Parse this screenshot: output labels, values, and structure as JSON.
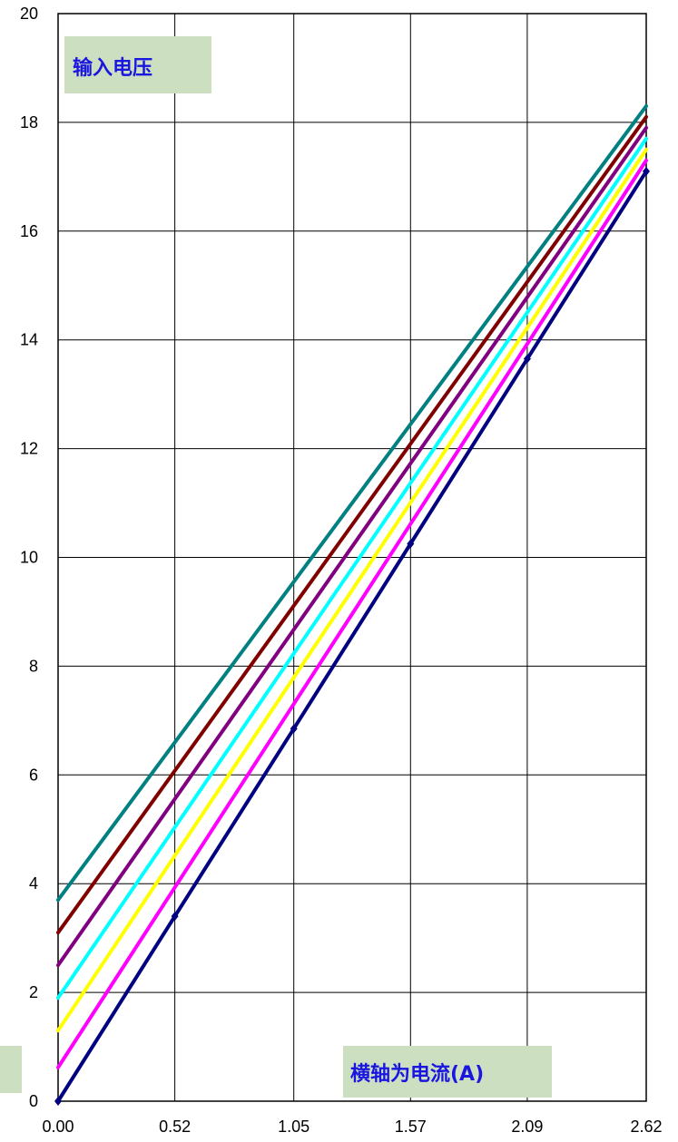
{
  "chart_data": {
    "type": "line",
    "ylabel": "输入电压",
    "xlabel": "横轴为电流(A)",
    "xlim": [
      0,
      2.62
    ],
    "ylim": [
      0,
      20
    ],
    "x_ticks": [
      "0.00",
      "0.52",
      "1.05",
      "1.57",
      "2.09",
      "2.62"
    ],
    "y_ticks": [
      "0",
      "2",
      "4",
      "6",
      "8",
      "10",
      "12",
      "14",
      "16",
      "18",
      "20"
    ],
    "grid": true,
    "label_box_color": "#ccdfc0",
    "series": [
      {
        "color": "#008080",
        "x": [
          0,
          2.62
        ],
        "y": [
          3.7,
          18.3
        ]
      },
      {
        "color": "#800000",
        "x": [
          0,
          2.62
        ],
        "y": [
          3.1,
          18.1
        ]
      },
      {
        "color": "#800080",
        "x": [
          0,
          2.62
        ],
        "y": [
          2.5,
          17.9
        ]
      },
      {
        "color": "#00ffff",
        "x": [
          0,
          2.62
        ],
        "y": [
          1.9,
          17.7
        ]
      },
      {
        "color": "#ffff00",
        "x": [
          0,
          2.62
        ],
        "y": [
          1.3,
          17.5
        ]
      },
      {
        "color": "#ff00ff",
        "x": [
          0,
          2.62
        ],
        "y": [
          0.62,
          17.3
        ]
      },
      {
        "color": "#000080",
        "markers": true,
        "x": [
          0,
          0.52,
          1.05,
          1.57,
          2.09,
          2.62
        ],
        "y": [
          0,
          3.4,
          6.85,
          10.25,
          13.65,
          17.1
        ]
      }
    ]
  }
}
